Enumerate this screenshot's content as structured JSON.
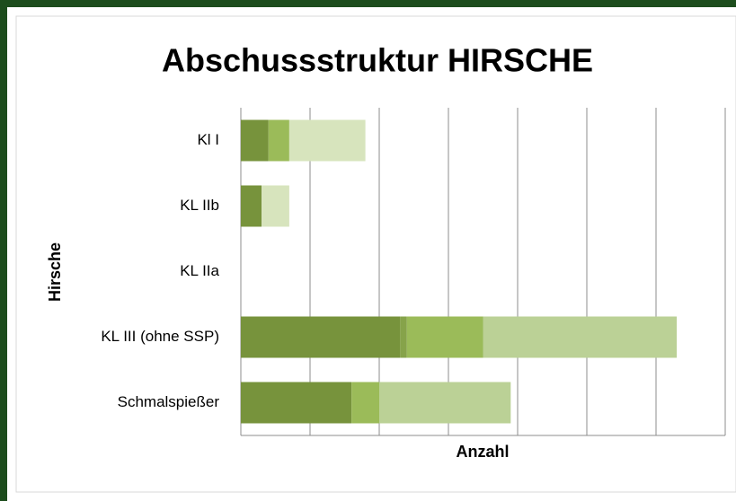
{
  "chart_data": {
    "type": "stacked-barh",
    "title": "Abschussstruktur HIRSCHE",
    "xlabel": "Anzahl",
    "ylabel": "Hirsche",
    "categories": [
      "Kl I",
      "KL IIb",
      "KL IIa",
      "KL III (ohne SSP)",
      "Schmalspießer"
    ],
    "series": [
      {
        "color": "#77933c",
        "values": [
          4,
          3,
          0,
          23,
          16
        ]
      },
      {
        "color": "#86a34a",
        "values": [
          0,
          0,
          0,
          1,
          0
        ]
      },
      {
        "color": "#9bbb59",
        "values": [
          3,
          0,
          0,
          11,
          4
        ]
      },
      {
        "color": "#d7e4bd",
        "values": [
          11,
          4,
          0,
          0,
          0
        ]
      },
      {
        "color": "#bbd196",
        "values": [
          0,
          0,
          0,
          28,
          19
        ]
      }
    ],
    "xlim": [
      0,
      70
    ],
    "xticks": [
      0,
      10,
      20,
      30,
      40,
      50,
      60,
      70
    ],
    "grid": true
  }
}
